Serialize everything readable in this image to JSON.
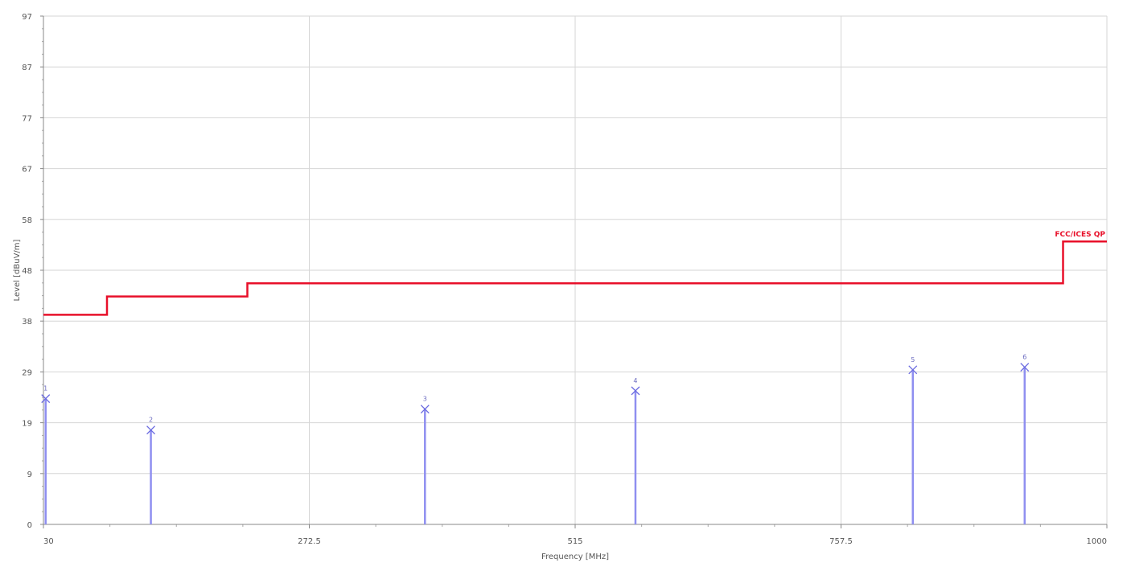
{
  "chart_data": {
    "type": "line",
    "xlabel": "Frequency [MHz]",
    "ylabel": "Level [dBuV/m]",
    "xlim": [
      30,
      1000
    ],
    "ylim": [
      0,
      97
    ],
    "x_ticks": [
      "30",
      "272.5",
      "515",
      "757.5",
      "1000"
    ],
    "x_tick_values": [
      30,
      272.5,
      515,
      757.5,
      1000
    ],
    "y_ticks": [
      "0",
      "9",
      "19",
      "29",
      "38",
      "48",
      "58",
      "67",
      "77",
      "87",
      "97"
    ],
    "y_tick_values": [
      0,
      9.7,
      19.4,
      29.1,
      38.8,
      48.5,
      58.2,
      67.9,
      77.6,
      87.3,
      97
    ],
    "grid": true,
    "series": [
      {
        "name": "FCC/ICES QP",
        "kind": "limit-step",
        "color": "#e8102a",
        "x": [
          30,
          88,
          88,
          216,
          216,
          960,
          960,
          1000
        ],
        "y": [
          40,
          40,
          43.5,
          43.5,
          46,
          46,
          54,
          54
        ]
      },
      {
        "kind": "peaks",
        "color": "#6a6ae0",
        "x": [
          32,
          128,
          378,
          570,
          823,
          925
        ],
        "y": [
          24,
          18,
          22,
          25.5,
          29.5,
          30
        ],
        "labels": [
          "1",
          "2",
          "3",
          "4",
          "5",
          "6"
        ]
      }
    ]
  }
}
